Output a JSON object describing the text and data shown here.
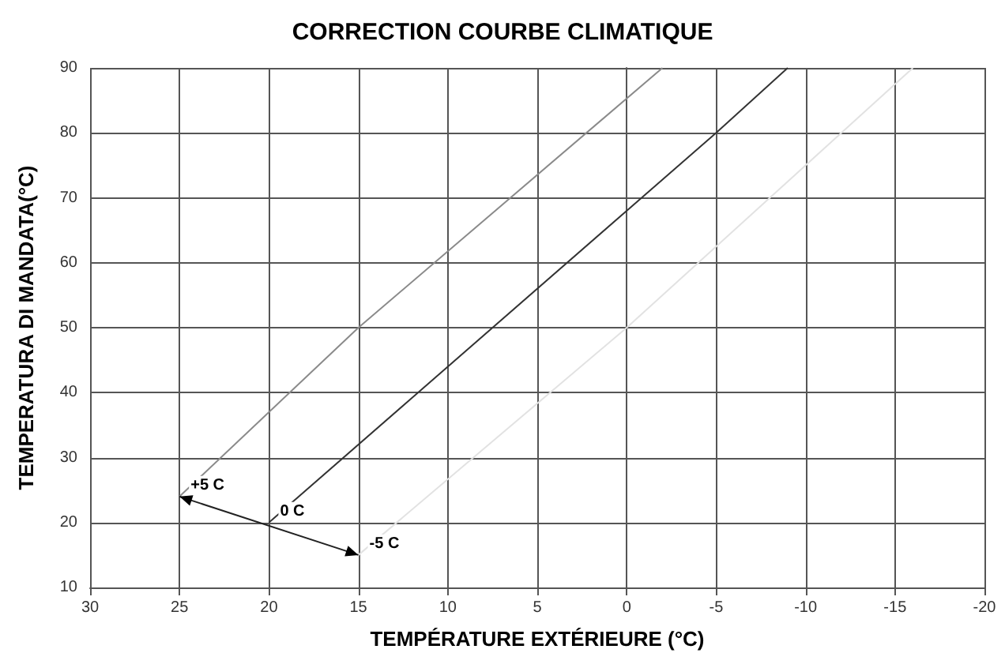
{
  "chart_data": {
    "type": "line",
    "title": "CORRECTION COURBE CLIMATIQUE",
    "xlabel": "TEMPÉRATURE EXTÉRIEURE (°C)",
    "ylabel": "TEMPERATURA DI MANDATA(°C)",
    "xlim": [
      30,
      -20
    ],
    "xticks": [
      30,
      25,
      20,
      15,
      10,
      5,
      0,
      -5,
      -10,
      -15,
      -20
    ],
    "ylim": [
      10,
      90
    ],
    "yticks": [
      10,
      20,
      30,
      40,
      50,
      60,
      70,
      80,
      90
    ],
    "grid": true,
    "marker": "none",
    "line_style": "solid",
    "legend": false,
    "series": [
      {
        "name": "+5 C",
        "color": "#8a8a8a",
        "x": [
          25,
          15,
          -2
        ],
        "values": [
          24,
          50,
          90
        ]
      },
      {
        "name": "0 C",
        "color": "#333333",
        "x": [
          20,
          -5,
          -9
        ],
        "values": [
          20,
          80,
          90
        ]
      },
      {
        "name": "-5 C",
        "color": "#e2e2e2",
        "x": [
          15,
          0,
          -16
        ],
        "values": [
          15,
          50,
          90
        ]
      }
    ]
  }
}
